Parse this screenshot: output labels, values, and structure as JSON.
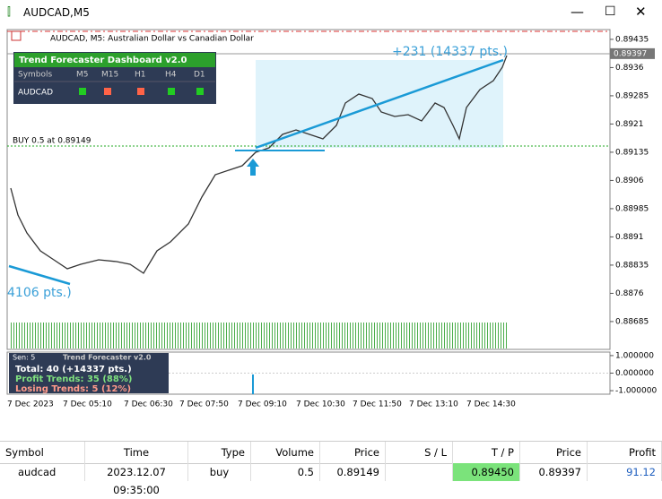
{
  "window": {
    "title": "AUDCAD,M5"
  },
  "chart": {
    "header": "AUDCAD, M5:  Australian Dollar vs Canadian Dollar",
    "profit_label": "+231 (14337 pts.)",
    "left_label": "4106 pts.)",
    "order_line": "BUY 0.5 at 0.89149",
    "ylim": [
      0.88611,
      0.89461
    ],
    "yticks": [
      0.89435,
      0.8936,
      0.89285,
      0.8921,
      0.89135,
      0.8906,
      0.88985,
      0.8891,
      0.88835,
      0.8876,
      0.88685
    ],
    "current_price": 0.89397,
    "time_labels": [
      "7 Dec 2023",
      "7 Dec 05:10",
      "7 Dec 06:30",
      "7 Dec 07:50",
      "7 Dec 09:10",
      "7 Dec 10:30",
      "7 Dec 11:50",
      "7 Dec 13:10",
      "7 Dec 14:30"
    ]
  },
  "dashboard": {
    "title": "Trend Forecaster Dashboard v2.0",
    "headers": [
      "Symbols",
      "M5",
      "M15",
      "H1",
      "H4",
      "D1"
    ],
    "symbol": "AUDCAD",
    "signals": [
      "#22cc22",
      "#ff6347",
      "#ff6347",
      "#22cc22",
      "#22cc22"
    ]
  },
  "indicator": {
    "sens": "Sen: 5",
    "name": "Trend Forecaster v2.0",
    "total": "Total: 40 (+14337 pts.)",
    "profit": "Profit Trends: 35 (88%)",
    "losing": "Losing Trends: 5 (12%)",
    "ylim": [
      -1.2,
      1.2
    ],
    "yticks": [
      {
        "value": 1,
        "label": "1.000000"
      },
      {
        "value": 0,
        "label": "0.000000"
      },
      {
        "value": -1,
        "label": "-1.000000"
      }
    ]
  },
  "table": {
    "headers": [
      "Symbol",
      "Time",
      "Type",
      "Volume",
      "Price",
      "S / L",
      "T / P",
      "Price",
      "Profit"
    ],
    "row": {
      "symbol": "audcad",
      "time": "2023.12.07 09:35:00",
      "type": "buy",
      "volume": "0.5",
      "price": "0.89149",
      "tp": "0.89450",
      "price2": "0.89397",
      "profit": "91.12"
    }
  }
}
